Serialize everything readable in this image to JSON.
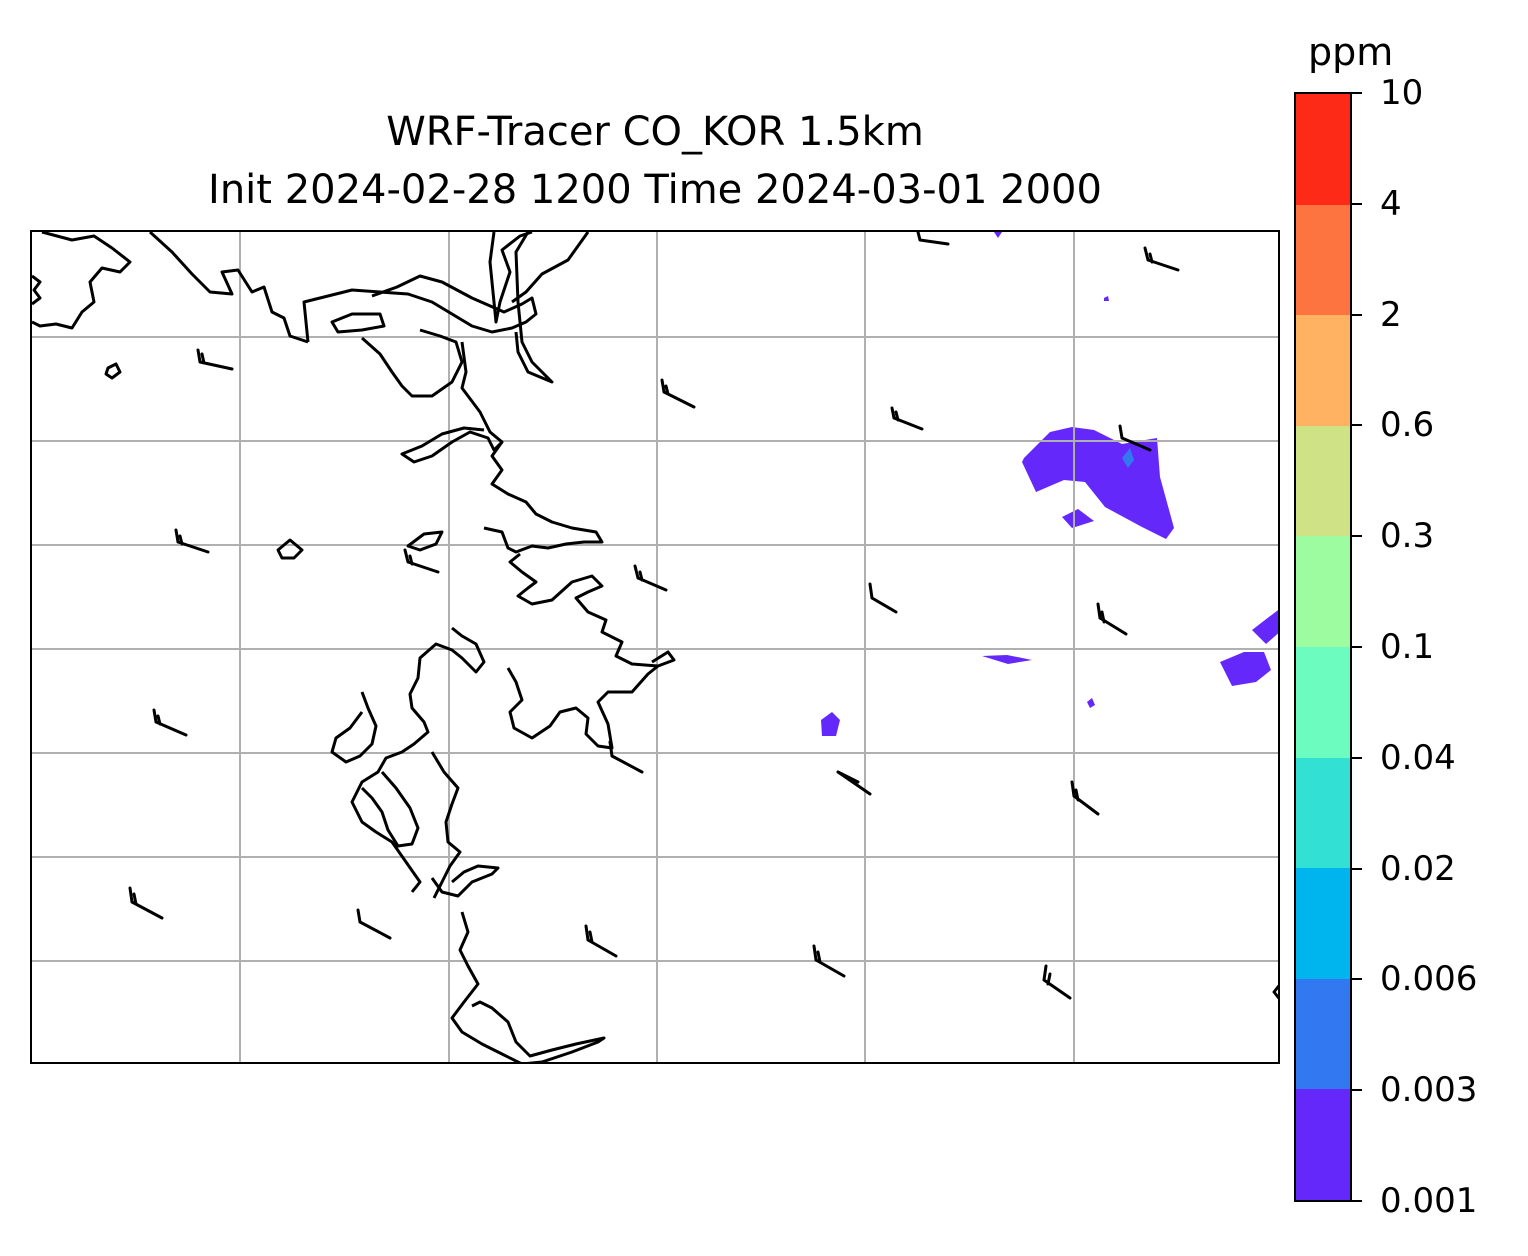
{
  "title": {
    "line1": "WRF-Tracer CO_KOR 1.5km",
    "line2": "Init 2024-02-28 1200 Time 2024-03-01 2000"
  },
  "colorbar": {
    "unit": "ppm",
    "levels": [
      "0.001",
      "0.003",
      "0.006",
      "0.02",
      "0.04",
      "0.1",
      "0.3",
      "0.6",
      "2",
      "4",
      "10"
    ],
    "colors": [
      "#6428FA",
      "#3278F0",
      "#00B4EE",
      "#32E0D4",
      "#6CFCC0",
      "#9EFCA0",
      "#D0E286",
      "#FEB262",
      "#FE7440",
      "#FE2A18"
    ]
  },
  "map": {
    "gridlines": true,
    "coastline_color": "#000000",
    "gridline_color": "#B0B0B0",
    "wind_barbs": true
  }
}
